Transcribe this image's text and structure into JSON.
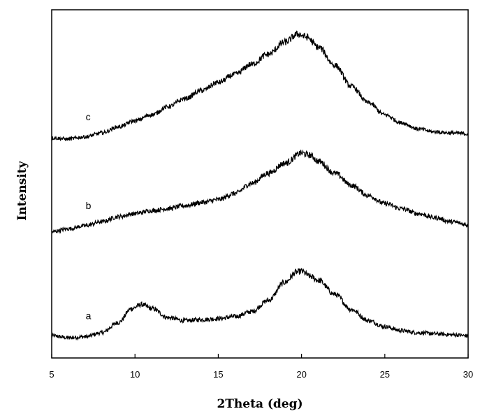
{
  "chart_data": {
    "type": "line",
    "title": "",
    "xlabel": "2Theta (deg)",
    "ylabel": "Intensity",
    "xlim": [
      5,
      30
    ],
    "xticks": [
      "5",
      "10",
      "15",
      "20",
      "25",
      "30"
    ],
    "y_tick_labels": false,
    "grid": false,
    "legend": "none",
    "line_color": "#000000",
    "series": [
      {
        "name": "a",
        "points": [
          [
            5,
            0.07
          ],
          [
            6,
            0.05
          ],
          [
            7,
            0.06
          ],
          [
            8,
            0.1
          ],
          [
            9,
            0.2
          ],
          [
            9.8,
            0.34
          ],
          [
            10.4,
            0.38
          ],
          [
            11,
            0.34
          ],
          [
            12,
            0.25
          ],
          [
            13,
            0.22
          ],
          [
            14,
            0.23
          ],
          [
            15,
            0.24
          ],
          [
            16,
            0.26
          ],
          [
            17,
            0.31
          ],
          [
            18,
            0.42
          ],
          [
            19,
            0.6
          ],
          [
            19.7,
            0.7
          ],
          [
            20,
            0.71
          ],
          [
            20.5,
            0.66
          ],
          [
            21,
            0.62
          ],
          [
            22,
            0.48
          ],
          [
            23,
            0.33
          ],
          [
            24,
            0.22
          ],
          [
            25,
            0.16
          ],
          [
            26,
            0.12
          ],
          [
            27,
            0.1
          ],
          [
            28,
            0.09
          ],
          [
            29,
            0.08
          ],
          [
            30,
            0.07
          ]
        ]
      },
      {
        "name": "b",
        "points": [
          [
            5,
            1.1
          ],
          [
            6,
            1.13
          ],
          [
            7,
            1.16
          ],
          [
            8,
            1.2
          ],
          [
            9,
            1.25
          ],
          [
            10,
            1.28
          ],
          [
            11,
            1.31
          ],
          [
            12,
            1.33
          ],
          [
            13,
            1.36
          ],
          [
            14,
            1.39
          ],
          [
            15,
            1.42
          ],
          [
            16,
            1.48
          ],
          [
            17,
            1.58
          ],
          [
            18,
            1.68
          ],
          [
            19,
            1.78
          ],
          [
            20,
            1.88
          ],
          [
            20.5,
            1.86
          ],
          [
            21,
            1.8
          ],
          [
            22,
            1.68
          ],
          [
            23,
            1.56
          ],
          [
            24,
            1.46
          ],
          [
            25,
            1.38
          ],
          [
            26,
            1.33
          ],
          [
            27,
            1.28
          ],
          [
            28,
            1.24
          ],
          [
            29,
            1.2
          ],
          [
            30,
            1.17
          ]
        ]
      },
      {
        "name": "c",
        "points": [
          [
            5,
            2.03
          ],
          [
            6,
            2.02
          ],
          [
            7,
            2.04
          ],
          [
            8,
            2.08
          ],
          [
            9,
            2.14
          ],
          [
            10,
            2.2
          ],
          [
            11,
            2.26
          ],
          [
            12,
            2.34
          ],
          [
            13,
            2.42
          ],
          [
            14,
            2.5
          ],
          [
            15,
            2.58
          ],
          [
            16,
            2.66
          ],
          [
            17,
            2.76
          ],
          [
            18,
            2.86
          ],
          [
            19,
            2.98
          ],
          [
            19.8,
            3.06
          ],
          [
            20.3,
            3.03
          ],
          [
            21,
            2.93
          ],
          [
            22,
            2.75
          ],
          [
            23,
            2.54
          ],
          [
            24,
            2.38
          ],
          [
            25,
            2.26
          ],
          [
            26,
            2.18
          ],
          [
            27,
            2.12
          ],
          [
            28,
            2.09
          ],
          [
            29,
            2.08
          ],
          [
            30,
            2.07
          ]
        ]
      }
    ]
  }
}
